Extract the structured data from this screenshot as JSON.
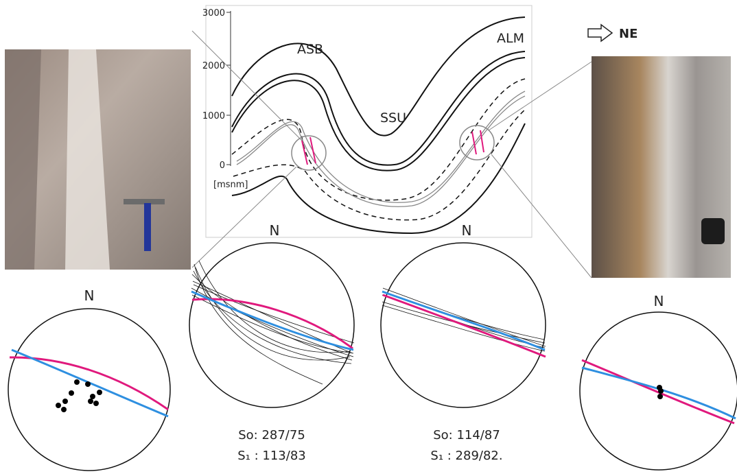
{
  "cross_section": {
    "elevation_ticks": [
      "3000",
      "2000",
      "1000",
      "0"
    ],
    "elevation_unit": "[msnm]",
    "units": [
      "ASB",
      "ALM",
      "SSU"
    ]
  },
  "direction": "NE",
  "stereonets": [
    {
      "north": "N"
    },
    {
      "north": "N"
    },
    {
      "north": "N"
    },
    {
      "north": "N"
    }
  ],
  "orientations": [
    {
      "so": "So: 287/75",
      "s1": "S₁ : 113/83"
    },
    {
      "so": "So: 114/87",
      "s1": "S₁ : 289/82."
    }
  ]
}
